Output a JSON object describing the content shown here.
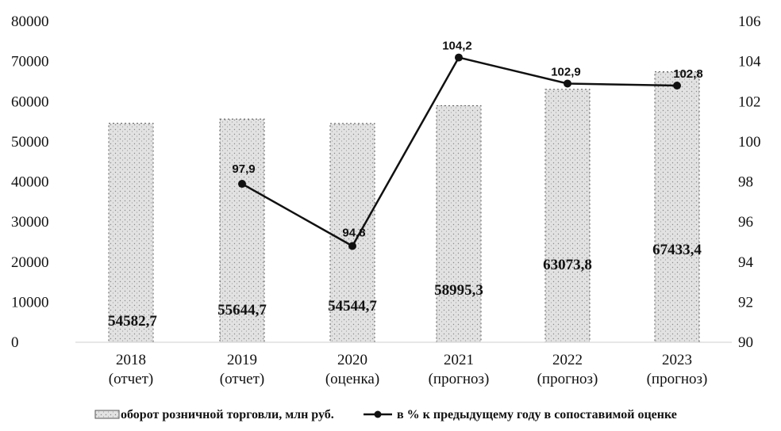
{
  "chart_data": {
    "type": "bar",
    "categories": [
      [
        "2018",
        "(отчет)"
      ],
      [
        "2019",
        "(отчет)"
      ],
      [
        "2020",
        "(оценка)"
      ],
      [
        "2021",
        "(прогноз)"
      ],
      [
        "2022",
        "(прогноз)"
      ],
      [
        "2023",
        "(прогноз)"
      ]
    ],
    "series": [
      {
        "name": "оборот розничной торговли, млн руб.",
        "type": "bar",
        "axis": "left",
        "values": [
          54582.7,
          55644.7,
          54544.7,
          58995.3,
          63073.8,
          67433.4
        ],
        "labels": [
          "54582,7",
          "55644,7",
          "54544,7",
          "58995,3",
          "63073,8",
          "67433,4"
        ]
      },
      {
        "name": "в % к предыдущему году в сопоставимой оценке",
        "type": "line",
        "axis": "right",
        "values": [
          null,
          97.9,
          94.8,
          104.2,
          102.9,
          102.8
        ],
        "labels": [
          "",
          "97,9",
          "94,8",
          "104,2",
          "102,9",
          "102,8"
        ]
      }
    ],
    "y_left": {
      "min": 0,
      "max": 80000,
      "ticks": [
        "0",
        "10000",
        "20000",
        "30000",
        "40000",
        "50000",
        "60000",
        "70000",
        "80000"
      ]
    },
    "y_right": {
      "min": 90,
      "max": 106,
      "ticks": [
        "90",
        "92",
        "94",
        "96",
        "98",
        "100",
        "102",
        "104",
        "106"
      ]
    },
    "legend_position": "bottom",
    "grid": false,
    "colors": {
      "bar_fill": "#d4d4d4",
      "bar_edge": "#555555",
      "line": "#111111"
    }
  }
}
